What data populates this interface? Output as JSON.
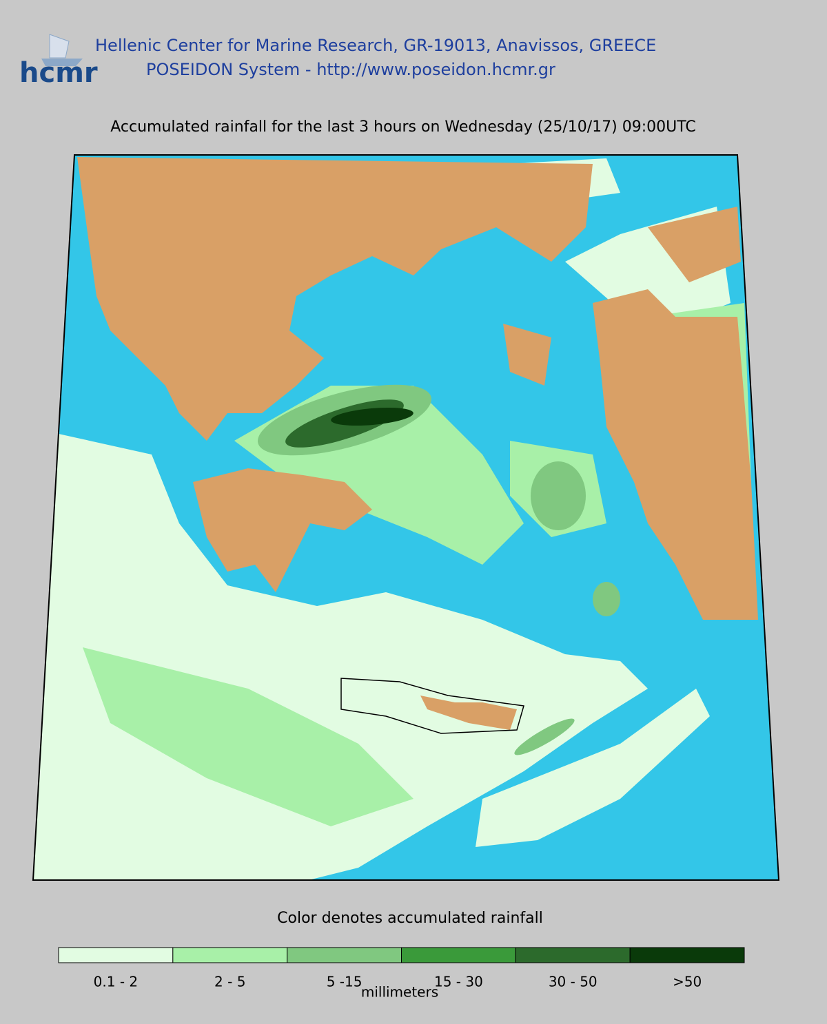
{
  "header": {
    "logo": "hcmr",
    "line1": "Hellenic Center for Marine Research, GR-19013, Anavissos, GREECE",
    "line2": "POSEIDON System - http://www.poseidon.hcmr.gr"
  },
  "title": "Accumulated rainfall for the last 3 hours on Wednesday (25/10/17) 09:00UTC",
  "legend": {
    "caption": "Color denotes accumulated rainfall",
    "unit": "millimeters",
    "items": [
      {
        "label": "0.1 - 2",
        "color": "#e2fce2"
      },
      {
        "label": "2 - 5",
        "color": "#a8f0a8"
      },
      {
        "label": "5 -15",
        "color": "#80c880"
      },
      {
        "label": "15 - 30",
        "color": "#3a9a3a"
      },
      {
        "label": "30 - 50",
        "color": "#2c6a2c"
      },
      {
        "label": ">50",
        "color": "#0a3a0a"
      }
    ]
  }
}
